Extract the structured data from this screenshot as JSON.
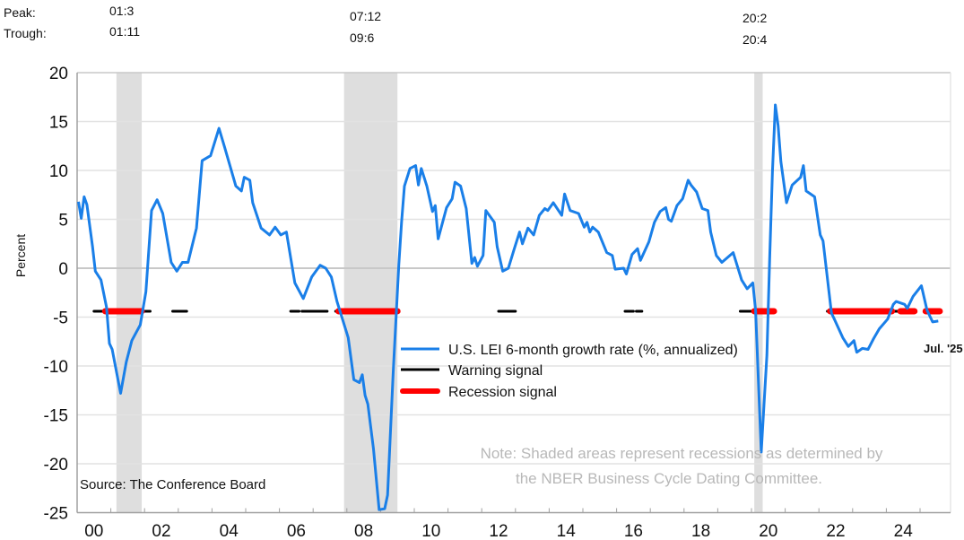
{
  "chart_data": {
    "type": "line",
    "ylabel": "Percent",
    "ylim": [
      -25,
      20
    ],
    "yticks": [
      "20",
      "15",
      "10",
      "5",
      "0",
      "-5",
      "-10",
      "-15",
      "-20",
      "-25"
    ],
    "ytick_values": [
      20,
      15,
      10,
      5,
      0,
      -5,
      -10,
      -15,
      -20,
      -25
    ],
    "xlim": [
      "2000-01",
      "2025-12"
    ],
    "xticks": [
      "00",
      "02",
      "04",
      "06",
      "08",
      "10",
      "12",
      "14",
      "16",
      "18",
      "20",
      "22",
      "24"
    ],
    "grid": true,
    "legend_placement": "center",
    "colors": {
      "series": "#1a7fe8",
      "warning": "#000000",
      "recession_signal": "#ff0000",
      "recession_shade": "#dedede",
      "note": "#b8b8b8"
    },
    "peak_trough": {
      "peak_label": "Peak:",
      "trough_label": "Trough:",
      "items": [
        {
          "peak": "01:3",
          "trough": "01:11"
        },
        {
          "peak": "07:12",
          "trough": "09:6"
        },
        {
          "peak": "20:2",
          "trough": "20:4"
        }
      ]
    },
    "recessions": [
      {
        "start": "2001-03",
        "end": "2001-11"
      },
      {
        "start": "2007-12",
        "end": "2009-06"
      },
      {
        "start": "2020-02",
        "end": "2020-04"
      }
    ],
    "series": [
      {
        "name": "U.S. LEI 6-month growth rate (%, annualized)",
        "points": [
          [
            "2000-01",
            6.8
          ],
          [
            "2000-02",
            5.1
          ],
          [
            "2000-03",
            7.3
          ],
          [
            "2000-04",
            6.5
          ],
          [
            "2000-06",
            2.2
          ],
          [
            "2000-07",
            -0.3
          ],
          [
            "2000-09",
            -1.2
          ],
          [
            "2000-11",
            -4.0
          ],
          [
            "2000-12",
            -7.7
          ],
          [
            "2001-01",
            -8.3
          ],
          [
            "2001-04",
            -12.8
          ],
          [
            "2001-06",
            -9.6
          ],
          [
            "2001-08",
            -7.4
          ],
          [
            "2001-11",
            -5.8
          ],
          [
            "2002-01",
            -2.4
          ],
          [
            "2002-03",
            5.9
          ],
          [
            "2002-05",
            7.0
          ],
          [
            "2002-07",
            5.6
          ],
          [
            "2002-10",
            0.6
          ],
          [
            "2002-12",
            -0.3
          ],
          [
            "2003-02",
            0.6
          ],
          [
            "2003-04",
            0.6
          ],
          [
            "2003-07",
            4.1
          ],
          [
            "2003-09",
            11.0
          ],
          [
            "2003-12",
            11.5
          ],
          [
            "2004-03",
            14.3
          ],
          [
            "2004-05",
            12.4
          ],
          [
            "2004-09",
            8.4
          ],
          [
            "2004-11",
            7.9
          ],
          [
            "2004-12",
            9.3
          ],
          [
            "2005-02",
            9.0
          ],
          [
            "2005-03",
            6.7
          ],
          [
            "2005-06",
            4.1
          ],
          [
            "2005-09",
            3.4
          ],
          [
            "2005-11",
            4.2
          ],
          [
            "2006-01",
            3.4
          ],
          [
            "2006-03",
            3.7
          ],
          [
            "2006-06",
            -1.5
          ],
          [
            "2006-09",
            -3.1
          ],
          [
            "2006-12",
            -0.9
          ],
          [
            "2007-03",
            0.3
          ],
          [
            "2007-05",
            0.0
          ],
          [
            "2007-07",
            -0.9
          ],
          [
            "2007-09",
            -3.4
          ],
          [
            "2008-01",
            -7.1
          ],
          [
            "2008-03",
            -11.4
          ],
          [
            "2008-05",
            -11.7
          ],
          [
            "2008-06",
            -10.9
          ],
          [
            "2008-07",
            -13.0
          ],
          [
            "2008-08",
            -13.9
          ],
          [
            "2008-10",
            -18.5
          ],
          [
            "2008-12",
            -24.7
          ],
          [
            "2009-02",
            -24.6
          ],
          [
            "2009-03",
            -23.2
          ],
          [
            "2009-05",
            -10.8
          ],
          [
            "2009-07",
            0.3
          ],
          [
            "2009-08",
            4.7
          ],
          [
            "2009-09",
            8.4
          ],
          [
            "2009-11",
            10.2
          ],
          [
            "2010-01",
            10.5
          ],
          [
            "2010-02",
            8.5
          ],
          [
            "2010-03",
            10.2
          ],
          [
            "2010-05",
            8.4
          ],
          [
            "2010-07",
            5.8
          ],
          [
            "2010-08",
            6.4
          ],
          [
            "2010-09",
            3.0
          ],
          [
            "2010-12",
            6.2
          ],
          [
            "2011-02",
            7.1
          ],
          [
            "2011-03",
            8.8
          ],
          [
            "2011-05",
            8.4
          ],
          [
            "2011-07",
            6.1
          ],
          [
            "2011-09",
            0.5
          ],
          [
            "2011-10",
            1.1
          ],
          [
            "2011-11",
            0.2
          ],
          [
            "2012-01",
            1.3
          ],
          [
            "2012-02",
            5.9
          ],
          [
            "2012-05",
            4.7
          ],
          [
            "2012-06",
            2.2
          ],
          [
            "2012-08",
            -0.3
          ],
          [
            "2012-10",
            0.0
          ],
          [
            "2012-12",
            1.9
          ],
          [
            "2013-02",
            3.7
          ],
          [
            "2013-03",
            2.5
          ],
          [
            "2013-05",
            4.1
          ],
          [
            "2013-07",
            3.4
          ],
          [
            "2013-09",
            5.4
          ],
          [
            "2013-11",
            6.1
          ],
          [
            "2013-12",
            5.9
          ],
          [
            "2014-02",
            6.7
          ],
          [
            "2014-05",
            5.4
          ],
          [
            "2014-06",
            7.6
          ],
          [
            "2014-08",
            5.9
          ],
          [
            "2014-11",
            5.6
          ],
          [
            "2015-01",
            4.2
          ],
          [
            "2015-02",
            4.7
          ],
          [
            "2015-03",
            3.7
          ],
          [
            "2015-04",
            4.2
          ],
          [
            "2015-06",
            3.7
          ],
          [
            "2015-09",
            1.6
          ],
          [
            "2015-11",
            1.3
          ],
          [
            "2015-12",
            -0.1
          ],
          [
            "2016-03",
            0.0
          ],
          [
            "2016-04",
            -0.6
          ],
          [
            "2016-06",
            1.4
          ],
          [
            "2016-08",
            2.0
          ],
          [
            "2016-09",
            0.8
          ],
          [
            "2016-12",
            2.7
          ],
          [
            "2017-02",
            4.7
          ],
          [
            "2017-04",
            5.8
          ],
          [
            "2017-06",
            6.2
          ],
          [
            "2017-07",
            5.0
          ],
          [
            "2017-08",
            4.8
          ],
          [
            "2017-10",
            6.4
          ],
          [
            "2017-12",
            7.1
          ],
          [
            "2018-02",
            9.0
          ],
          [
            "2018-03",
            8.5
          ],
          [
            "2018-05",
            7.8
          ],
          [
            "2018-07",
            6.1
          ],
          [
            "2018-09",
            5.9
          ],
          [
            "2018-10",
            3.7
          ],
          [
            "2018-12",
            1.3
          ],
          [
            "2019-02",
            0.6
          ],
          [
            "2019-06",
            1.6
          ],
          [
            "2019-09",
            -1.2
          ],
          [
            "2019-11",
            -2.1
          ],
          [
            "2020-01",
            -1.5
          ],
          [
            "2020-02",
            -4.3
          ],
          [
            "2020-04",
            -18.8
          ],
          [
            "2020-05",
            -13.9
          ],
          [
            "2020-06",
            -8.9
          ],
          [
            "2020-07",
            1.0
          ],
          [
            "2020-08",
            9.9
          ],
          [
            "2020-09",
            16.7
          ],
          [
            "2020-10",
            14.6
          ],
          [
            "2020-11",
            10.9
          ],
          [
            "2021-01",
            6.7
          ],
          [
            "2021-03",
            8.5
          ],
          [
            "2021-06",
            9.3
          ],
          [
            "2021-07",
            10.5
          ],
          [
            "2021-08",
            7.9
          ],
          [
            "2021-11",
            7.3
          ],
          [
            "2022-01",
            3.4
          ],
          [
            "2022-02",
            2.8
          ],
          [
            "2022-05",
            -4.6
          ],
          [
            "2022-06",
            -5.2
          ],
          [
            "2022-09",
            -7.1
          ],
          [
            "2022-11",
            -8.0
          ],
          [
            "2023-01",
            -7.4
          ],
          [
            "2023-02",
            -8.6
          ],
          [
            "2023-04",
            -8.2
          ],
          [
            "2023-06",
            -8.3
          ],
          [
            "2023-08",
            -7.2
          ],
          [
            "2023-10",
            -6.2
          ],
          [
            "2024-01",
            -5.2
          ],
          [
            "2024-03",
            -3.7
          ],
          [
            "2024-04",
            -3.4
          ],
          [
            "2024-07",
            -3.7
          ],
          [
            "2024-08",
            -4.1
          ],
          [
            "2024-10",
            -2.9
          ],
          [
            "2025-01",
            -1.8
          ],
          [
            "2025-03",
            -4.3
          ],
          [
            "2025-05",
            -5.5
          ],
          [
            "2025-07",
            -5.4
          ]
        ]
      }
    ],
    "signal_level": -4.4,
    "warning_signal": {
      "name": "Warning signal",
      "ranges": [
        [
          "2000-07",
          "2000-11"
        ],
        [
          "2001-11",
          "2002-02"
        ],
        [
          "2002-11",
          "2003-03"
        ],
        [
          "2006-05",
          "2006-07"
        ],
        [
          "2006-09",
          "2007-05"
        ],
        [
          "2007-09",
          "2007-10"
        ],
        [
          "2012-07",
          "2012-12"
        ],
        [
          "2016-04",
          "2016-06"
        ],
        [
          "2016-08",
          "2016-09"
        ],
        [
          "2019-09",
          "2020-01"
        ],
        [
          "2022-04",
          "2022-05"
        ],
        [
          "2024-02",
          "2024-06"
        ]
      ]
    },
    "recession_signal": {
      "name": "Recession signal",
      "ranges": [
        [
          "2000-11",
          "2001-11"
        ],
        [
          "2007-10",
          "2009-06"
        ],
        [
          "2020-02",
          "2020-08"
        ],
        [
          "2022-05",
          "2024-02"
        ],
        [
          "2024-06",
          "2024-10"
        ],
        [
          "2025-03",
          "2025-07"
        ]
      ]
    },
    "last_label": "Jul. '25",
    "note": [
      "Note: Shaded areas represent recessions as determined by",
      "the NBER Business Cycle Dating Committee."
    ],
    "source": "Source: The Conference Board"
  }
}
